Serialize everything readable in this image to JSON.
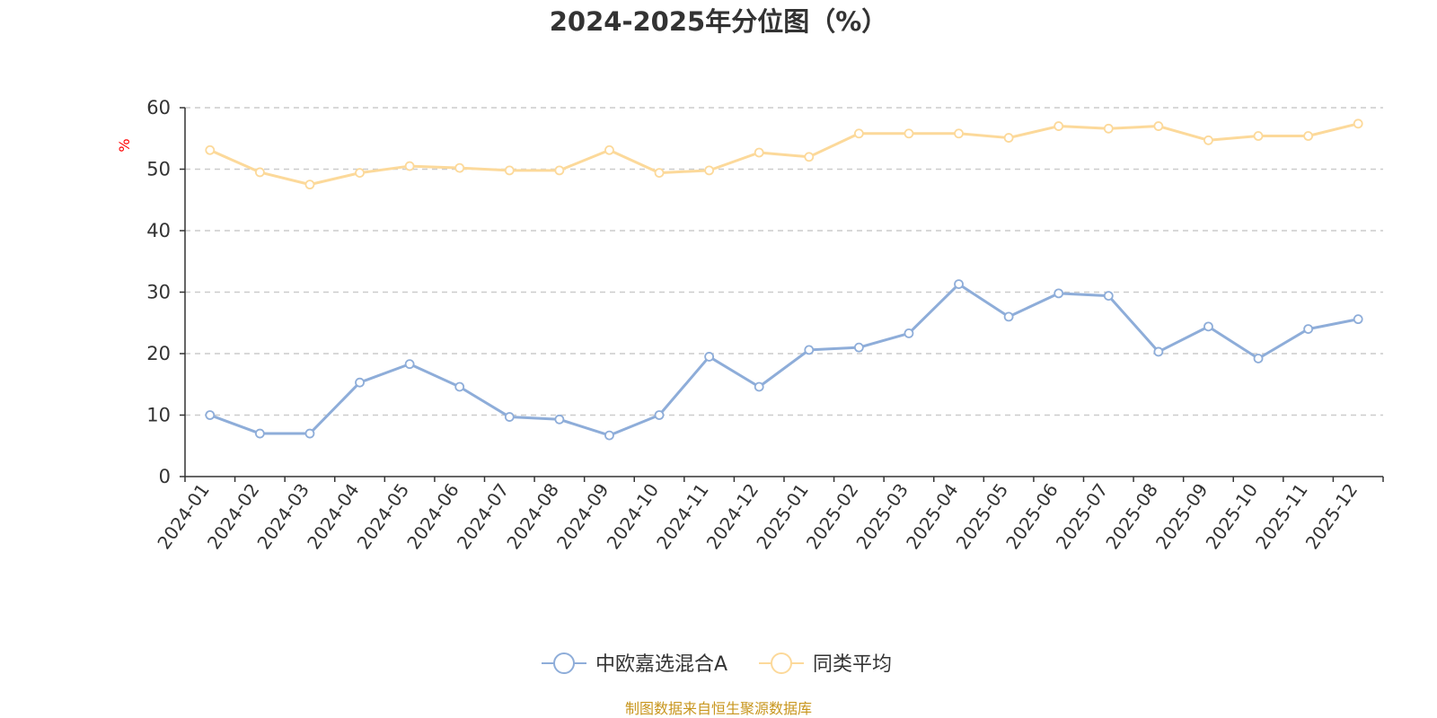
{
  "chart_data": {
    "type": "line",
    "title": "2024-2025年分位图（%）",
    "ylabel": "%",
    "xlabel": "",
    "ylim": [
      0,
      60
    ],
    "yticks": [
      0,
      10,
      20,
      30,
      40,
      50,
      60
    ],
    "grid": true,
    "legend_position": "bottom-center",
    "categories": [
      "2024-01",
      "2024-02",
      "2024-03",
      "2024-04",
      "2024-05",
      "2024-06",
      "2024-07",
      "2024-08",
      "2024-09",
      "2024-10",
      "2024-11",
      "2024-12",
      "2025-01",
      "2025-02",
      "2025-03",
      "2025-04",
      "2025-05",
      "2025-06",
      "2025-07",
      "2025-08",
      "2025-09",
      "2025-10",
      "2025-11",
      "2025-12"
    ],
    "series": [
      {
        "name": "中欧嘉选混合A",
        "color": "#8eadd9",
        "values": [
          10.0,
          7.0,
          7.0,
          15.3,
          18.3,
          14.6,
          9.7,
          9.3,
          6.7,
          10.0,
          19.5,
          14.6,
          20.6,
          21.0,
          23.3,
          31.3,
          26.0,
          29.8,
          29.4,
          20.3,
          24.4,
          19.2,
          24.0,
          25.6
        ]
      },
      {
        "name": "同类平均",
        "color": "#fcd99a",
        "values": [
          53.1,
          49.5,
          47.5,
          49.4,
          50.5,
          50.2,
          49.8,
          49.8,
          53.1,
          49.4,
          49.8,
          52.7,
          52.0,
          55.8,
          55.8,
          55.8,
          55.1,
          57.0,
          56.6,
          57.0,
          54.7,
          55.4,
          55.4,
          57.4
        ]
      }
    ]
  },
  "source_note": "制图数据来自恒生聚源数据库"
}
